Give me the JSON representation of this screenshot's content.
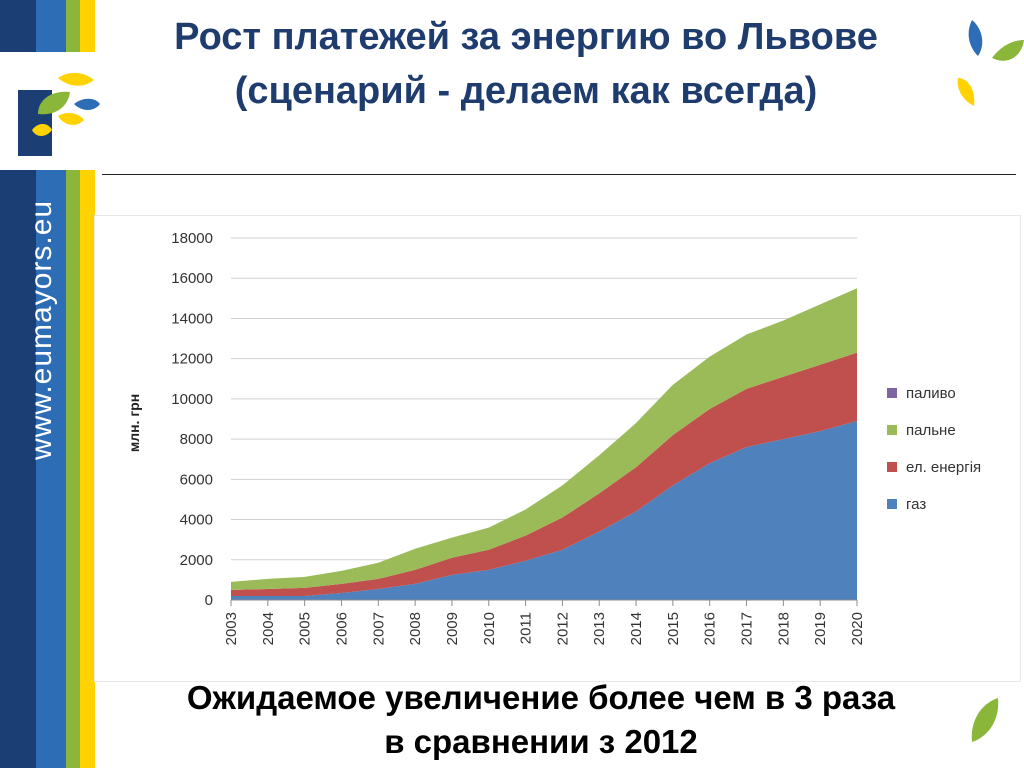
{
  "header": {
    "title_line1": "Рост платежей за энергию во Львове",
    "title_line2": "(сценарий -  делаем как всегда)"
  },
  "sidebar": {
    "url_text": "www.eumayors.eu"
  },
  "colors": {
    "stripe_dark": "#1b3f74",
    "stripe_mid": "#2d6db5",
    "stripe_yellow": "#ffd200",
    "stripe_green": "#8ab73a",
    "series_gas": "#4f81bd",
    "series_el": "#c0504d",
    "series_pal_ne": "#9bbb59",
    "series_palyvo": "#8064a2"
  },
  "chart_data": {
    "type": "area",
    "ylabel": "млн. грн",
    "ylim": [
      0,
      18000
    ],
    "yticks": [
      "0",
      "2000",
      "4000",
      "6000",
      "8000",
      "10000",
      "12000",
      "14000",
      "16000",
      "18000"
    ],
    "categories": [
      "2003",
      "2004",
      "2005",
      "2006",
      "2007",
      "2008",
      "2009",
      "2010",
      "2011",
      "2012",
      "2013",
      "2014",
      "2015",
      "2016",
      "2017",
      "2018",
      "2019",
      "2020"
    ],
    "stacked": true,
    "legend_position": "right",
    "grid": true,
    "series": [
      {
        "name": "газ",
        "color": "#4f81bd",
        "values": [
          200,
          200,
          200,
          350,
          550,
          800,
          1250,
          1500,
          1950,
          2500,
          3400,
          4400,
          5700,
          6800,
          7600,
          8000,
          8400,
          8900
        ]
      },
      {
        "name": "ел. енергія",
        "color": "#c0504d",
        "values": [
          300,
          350,
          400,
          450,
          500,
          700,
          850,
          1000,
          1250,
          1600,
          1900,
          2200,
          2500,
          2700,
          2900,
          3100,
          3300,
          3400
        ]
      },
      {
        "name": "пальне",
        "color": "#9bbb59",
        "values": [
          400,
          500,
          550,
          650,
          800,
          1050,
          1000,
          1100,
          1300,
          1600,
          1900,
          2200,
          2500,
          2600,
          2700,
          2800,
          3000,
          3200
        ]
      },
      {
        "name": "паливо",
        "color": "#8064a2",
        "values": [
          0,
          0,
          0,
          0,
          0,
          0,
          0,
          0,
          0,
          0,
          0,
          0,
          0,
          0,
          0,
          0,
          0,
          0
        ]
      }
    ]
  },
  "footer": {
    "conclusion_line1": "Ожидаемое увеличение более чем в 3 раза",
    "conclusion_line2": "в сравнении з 2012"
  }
}
